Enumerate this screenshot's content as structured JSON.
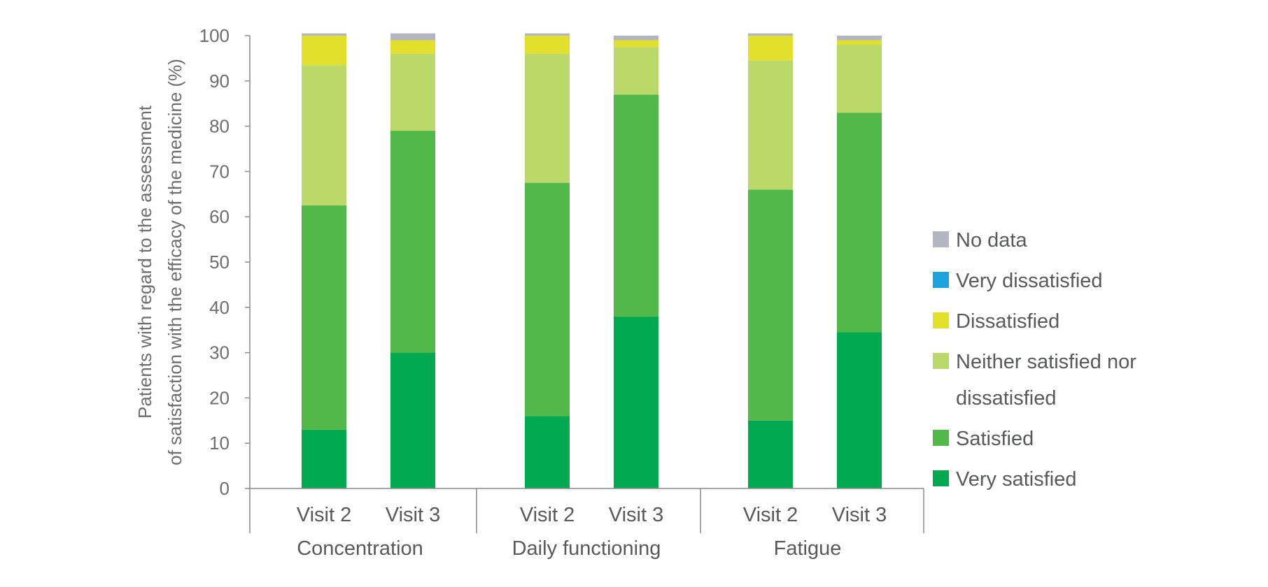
{
  "chart_data": {
    "type": "bar",
    "stacked": true,
    "ylabel": [
      "Patients with regard to the assessment",
      "of satisfaction with the efficacy of the medicine (%)"
    ],
    "ylim": [
      0,
      100
    ],
    "yticks": [
      "0",
      "10",
      "20",
      "30",
      "40",
      "50",
      "60",
      "70",
      "80",
      "90",
      "100"
    ],
    "groups": [
      "Concentration",
      "Daily functioning",
      "Fatigue"
    ],
    "categories": [
      "Visit 2",
      "Visit 3",
      "Visit 2",
      "Visit 3",
      "Visit 2",
      "Visit 3"
    ],
    "series": [
      {
        "name": "Very satisfied",
        "color": "#00a850",
        "values": [
          13,
          30,
          16,
          38,
          15,
          34.5
        ]
      },
      {
        "name": "Satisfied",
        "color": "#52b848",
        "values": [
          49.5,
          49,
          51.5,
          49,
          51,
          48.5
        ]
      },
      {
        "name": "Neither satisfied nor dissatisfied",
        "color": "#bad96a",
        "values": [
          31,
          17,
          28.5,
          10.5,
          28.5,
          15
        ]
      },
      {
        "name": "Dissatisfied",
        "color": "#e2df2d",
        "values": [
          6.5,
          3,
          4,
          1.5,
          5.5,
          1
        ]
      },
      {
        "name": "Very dissatisfied",
        "color": "#1ba3dd",
        "values": [
          0,
          0,
          0,
          0,
          0,
          0
        ]
      },
      {
        "name": "No data",
        "color": "#b3b5c0",
        "values": [
          0.5,
          1.5,
          0.5,
          1,
          0.5,
          1
        ]
      }
    ],
    "legend_order": [
      "No data",
      "Very dissatisfied",
      "Dissatisfied",
      "Neither satisfied nor dissatisfied",
      "Satisfied",
      "Very satisfied"
    ],
    "legend_position": "right"
  }
}
